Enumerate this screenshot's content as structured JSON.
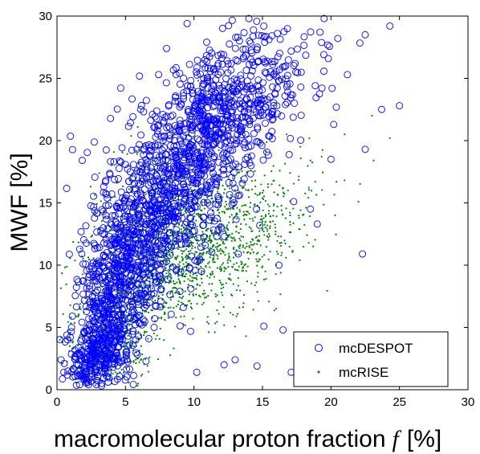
{
  "chart_data": {
    "type": "scatter",
    "xlabel": "macromolecular proton fraction",
    "xlabel_symbol": "f",
    "xlabel_unit": "[%]",
    "ylabel": "MWF  [%]",
    "xlim": [
      0,
      30
    ],
    "ylim": [
      0,
      30
    ],
    "xticks": [
      "0",
      "5",
      "10",
      "15",
      "20",
      "25",
      "30"
    ],
    "yticks": [
      "0",
      "5",
      "10",
      "15",
      "20",
      "25",
      "30"
    ],
    "grid": false,
    "legend_position": "bottom-right",
    "colors": {
      "mcDESPOT": "#0000ff",
      "mcRISE": "#008000"
    },
    "series": [
      {
        "name": "mcDESPOT",
        "marker": "circle",
        "x": [
          19.5,
          20.5,
          22.5,
          24.3,
          21.2,
          16.7,
          13.2,
          8.0,
          9.5,
          25.0,
          23.7,
          17.8,
          20.2,
          10.6,
          6.1,
          14.8,
          18.5,
          22.3,
          19.0,
          16.2,
          7.2,
          15.1,
          5.2,
          2.1,
          0.3,
          0.5,
          13.0,
          10.2,
          12.2,
          14.6,
          17.1,
          16.5,
          22.5,
          20.0,
          3.0,
          1.5,
          0.8,
          2.5,
          4.8,
          6.5
        ],
        "y": [
          29.8,
          28.2,
          28.5,
          29.2,
          25.3,
          26.0,
          28.3,
          27.4,
          29.4,
          22.8,
          22.5,
          24.3,
          21.3,
          19.2,
          17.5,
          13.2,
          14.5,
          10.9,
          13.3,
          10.0,
          6.7,
          5.1,
          4.3,
          3.5,
          2.4,
          1.4,
          2.4,
          1.4,
          2.0,
          1.9,
          1.4,
          4.8,
          19.3,
          18.5,
          0.7,
          1.1,
          1.5,
          2.0,
          5.5,
          2.3
        ],
        "clusters": [
          {
            "cx": 11.5,
            "cy": 21.5,
            "sx": 3.5,
            "sy": 2.8,
            "n": 820
          },
          {
            "cx": 7.5,
            "cy": 14.0,
            "sx": 2.2,
            "sy": 3.0,
            "n": 520
          },
          {
            "cx": 4.5,
            "cy": 8.0,
            "sx": 1.5,
            "sy": 3.0,
            "n": 480
          },
          {
            "cx": 3.0,
            "cy": 3.0,
            "sx": 1.1,
            "sy": 1.6,
            "n": 300
          }
        ]
      },
      {
        "name": "mcRISE",
        "marker": "dot",
        "x": [
          23.0,
          24.3,
          21.0,
          22.0,
          0.4,
          20.3,
          16.0,
          13.8,
          18.7
        ],
        "y": [
          22.0,
          20.2,
          20.5,
          15.1,
          2.1,
          14.0,
          6.5,
          4.3,
          11.5
        ],
        "clusters": [
          {
            "cx": 8.5,
            "cy": 11.0,
            "sx": 3.3,
            "sy": 2.8,
            "n": 1100
          },
          {
            "cx": 13.5,
            "cy": 12.0,
            "sx": 3.0,
            "sy": 2.6,
            "n": 450
          },
          {
            "cx": 4.0,
            "cy": 4.0,
            "sx": 1.5,
            "sy": 2.4,
            "n": 500
          },
          {
            "cx": 7.0,
            "cy": 16.0,
            "sx": 2.5,
            "sy": 2.4,
            "n": 300
          }
        ]
      }
    ]
  }
}
